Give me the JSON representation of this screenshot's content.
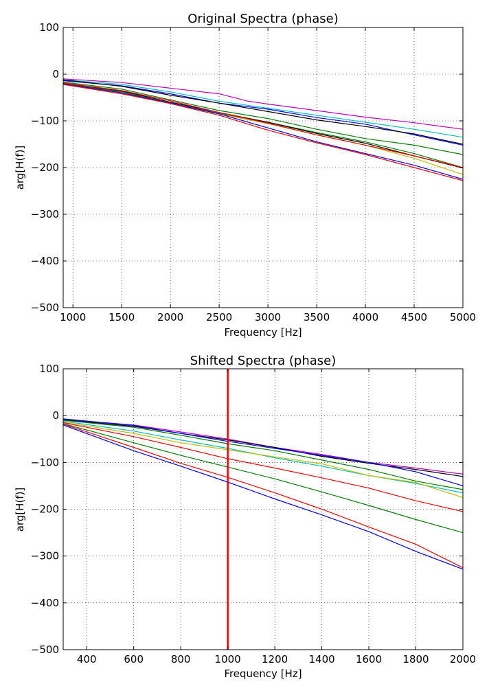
{
  "chart_data": [
    {
      "type": "line",
      "title": "Original Spectra (phase)",
      "xlabel": "Frequency [Hz]",
      "ylabel": "arg[H(f)]",
      "xlim": [
        900,
        5000
      ],
      "ylim": [
        -500,
        100
      ],
      "xticks": [
        1000,
        1500,
        2000,
        2500,
        3000,
        3500,
        4000,
        4500,
        5000
      ],
      "yticks": [
        100,
        0,
        -100,
        -200,
        -300,
        -400,
        -500
      ],
      "grid": true,
      "series": [
        {
          "color": "#bf00bf",
          "x": [
            900,
            1500,
            2000,
            2500,
            2800,
            3000,
            3500,
            4000,
            4500,
            5000
          ],
          "y": [
            -10,
            -18,
            -30,
            -42,
            -58,
            -64,
            -78,
            -92,
            -104,
            -118
          ]
        },
        {
          "color": "#00bfbf",
          "x": [
            900,
            1500,
            2000,
            2500,
            3000,
            3500,
            4000,
            4500,
            5000
          ],
          "y": [
            -12,
            -22,
            -38,
            -58,
            -73,
            -88,
            -103,
            -118,
            -135
          ]
        },
        {
          "color": "#0000ff",
          "x": [
            900,
            1500,
            2000,
            2500,
            3000,
            3500,
            4000,
            4500,
            5000
          ],
          "y": [
            -14,
            -25,
            -42,
            -62,
            -75,
            -93,
            -107,
            -130,
            -152
          ]
        },
        {
          "color": "#000000",
          "x": [
            900,
            1500,
            2000,
            2500,
            3000,
            3500,
            4000,
            4500,
            5000
          ],
          "y": [
            -12,
            -26,
            -45,
            -62,
            -80,
            -98,
            -112,
            -128,
            -150
          ]
        },
        {
          "color": "#007f00",
          "x": [
            900,
            1500,
            2000,
            2500,
            3000,
            3500,
            4000,
            4500,
            5000
          ],
          "y": [
            -17,
            -32,
            -55,
            -78,
            -95,
            -118,
            -138,
            -152,
            -172
          ]
        },
        {
          "color": "#007f00",
          "x": [
            900,
            1500,
            2000,
            2500,
            3000,
            3500,
            4000,
            4500,
            5000
          ],
          "y": [
            -20,
            -38,
            -62,
            -84,
            -103,
            -125,
            -145,
            -170,
            -200
          ]
        },
        {
          "color": "#bfbf00",
          "x": [
            900,
            1500,
            2000,
            2500,
            3000,
            3500,
            4000,
            4500,
            5000
          ],
          "y": [
            -22,
            -40,
            -63,
            -85,
            -106,
            -130,
            -152,
            -180,
            -215
          ]
        },
        {
          "color": "#000000",
          "x": [
            900,
            1500,
            2000,
            2500,
            3000,
            3500,
            4000,
            4500,
            5000
          ],
          "y": [
            -19,
            -36,
            -60,
            -82,
            -103,
            -127,
            -148,
            -175,
            -201
          ]
        },
        {
          "color": "#ff0000",
          "x": [
            900,
            1500,
            2000,
            2500,
            3000,
            3500,
            4000,
            4500,
            5000
          ],
          "y": [
            -19,
            -35,
            -57,
            -82,
            -105,
            -130,
            -152,
            -175,
            -200
          ]
        },
        {
          "color": "#0000ff",
          "x": [
            900,
            1500,
            2000,
            2500,
            3000,
            3500,
            4000,
            4500,
            5000
          ],
          "y": [
            -21,
            -40,
            -62,
            -85,
            -115,
            -145,
            -170,
            -195,
            -225
          ]
        },
        {
          "color": "#ff0000",
          "x": [
            900,
            1500,
            2000,
            2500,
            3000,
            3500,
            4000,
            4500,
            5000
          ],
          "y": [
            -22,
            -42,
            -63,
            -88,
            -120,
            -147,
            -172,
            -200,
            -228
          ]
        }
      ]
    },
    {
      "type": "line",
      "title": "Shifted Spectra (phase)",
      "xlabel": "Frequency [Hz]",
      "ylabel": "arg[H(f)]",
      "xlim": [
        300,
        2000
      ],
      "ylim": [
        -500,
        100
      ],
      "xticks": [
        400,
        600,
        800,
        1000,
        1200,
        1400,
        1600,
        1800,
        2000
      ],
      "yticks": [
        100,
        0,
        -100,
        -200,
        -300,
        -400,
        -500
      ],
      "grid": true,
      "vline": {
        "x": 1000,
        "color": "#ff0000"
      },
      "series": [
        {
          "color": "#bf00bf",
          "x": [
            300,
            600,
            800,
            1000,
            1200,
            1400,
            1600,
            1800,
            2000
          ],
          "y": [
            -8,
            -20,
            -35,
            -50,
            -68,
            -83,
            -100,
            -112,
            -125
          ]
        },
        {
          "color": "#000000",
          "x": [
            300,
            600,
            800,
            1000,
            1200,
            1400,
            1600,
            1800,
            2000
          ],
          "y": [
            -9,
            -23,
            -38,
            -52,
            -68,
            -87,
            -102,
            -115,
            -130
          ]
        },
        {
          "color": "#0000ff",
          "x": [
            300,
            600,
            800,
            1000,
            1200,
            1400,
            1600,
            1800,
            2000
          ],
          "y": [
            -7,
            -21,
            -38,
            -55,
            -70,
            -85,
            -100,
            -120,
            -150
          ]
        },
        {
          "color": "#007f00",
          "x": [
            300,
            600,
            800,
            1000,
            1200,
            1400,
            1600,
            1800,
            2000
          ],
          "y": [
            -10,
            -25,
            -42,
            -60,
            -75,
            -95,
            -115,
            -140,
            -158
          ]
        },
        {
          "color": "#00bfbf",
          "x": [
            300,
            600,
            800,
            1000,
            1200,
            1400,
            1600,
            1800,
            2000
          ],
          "y": [
            -12,
            -33,
            -52,
            -70,
            -90,
            -108,
            -128,
            -145,
            -165
          ]
        },
        {
          "color": "#bfbf00",
          "x": [
            300,
            600,
            800,
            1000,
            1200,
            1400,
            1600,
            1800,
            2000
          ],
          "y": [
            -14,
            -38,
            -58,
            -73,
            -88,
            -103,
            -128,
            -143,
            -175
          ]
        },
        {
          "color": "#ff0000",
          "x": [
            300,
            600,
            800,
            1000,
            1200,
            1400,
            1600,
            1800,
            2000
          ],
          "y": [
            -15,
            -45,
            -68,
            -92,
            -112,
            -133,
            -155,
            -182,
            -205
          ]
        },
        {
          "color": "#007f00",
          "x": [
            300,
            600,
            800,
            1000,
            1200,
            1400,
            1600,
            1800,
            2000
          ],
          "y": [
            -17,
            -58,
            -85,
            -110,
            -135,
            -163,
            -192,
            -222,
            -250
          ]
        },
        {
          "color": "#ff0000",
          "x": [
            300,
            600,
            800,
            1000,
            1200,
            1400,
            1600,
            1800,
            2000
          ],
          "y": [
            -18,
            -68,
            -102,
            -132,
            -165,
            -200,
            -238,
            -275,
            -325
          ]
        },
        {
          "color": "#0000ff",
          "x": [
            300,
            600,
            800,
            1000,
            1200,
            1400,
            1600,
            1800,
            2000
          ],
          "y": [
            -20,
            -75,
            -108,
            -142,
            -178,
            -212,
            -248,
            -290,
            -328
          ]
        }
      ]
    }
  ]
}
